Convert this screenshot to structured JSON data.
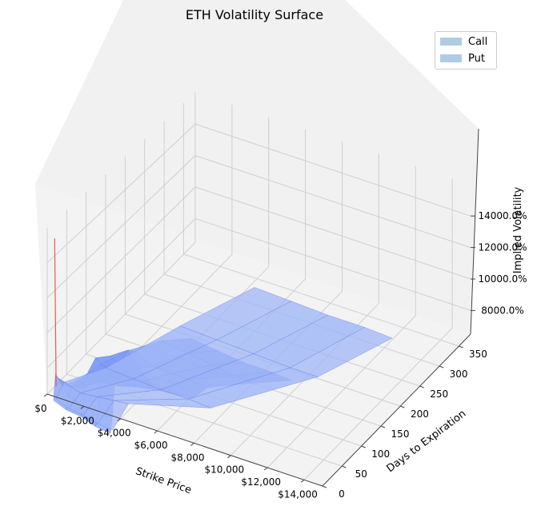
{
  "chart_data": {
    "type": "surface",
    "title": "ETH Volatility Surface",
    "xlabel": "Strike Price",
    "ylabel": "Days to Expiration",
    "zlabel": "Implied Volatility",
    "x_ticks": [
      "$0",
      "$2,000",
      "$4,000",
      "$6,000",
      "$8,000",
      "$10,000",
      "$12,000",
      "$14,000"
    ],
    "y_ticks": [
      "0",
      "50",
      "100",
      "150",
      "200",
      "250",
      "300",
      "350"
    ],
    "z_ticks": [
      "8000.0%",
      "10000.0%",
      "12000.0%",
      "14000.0%"
    ],
    "xlim": [
      0,
      15000
    ],
    "ylim": [
      0,
      380
    ],
    "zlim": [
      6500,
      16000
    ],
    "legend": {
      "position": "top-right"
    },
    "series": [
      {
        "name": "Call",
        "color": "#8fb7d9",
        "surface_color": "#7f9cf5",
        "strips": [
          [
            [
              300,
              2,
              6200
            ],
            [
              1000,
              2,
              5900
            ],
            [
              1800,
              2,
              5800
            ],
            [
              2600,
              2,
              5500
            ],
            [
              3400,
              2,
              5400
            ]
          ],
          [
            [
              300,
              7,
              7600
            ],
            [
              1000,
              7,
              6600
            ],
            [
              1800,
              7,
              6300
            ],
            [
              2600,
              7,
              6100
            ],
            [
              3400,
              7,
              6200
            ]
          ],
          [
            [
              300,
              14,
              7200
            ],
            [
              1000,
              14,
              7000
            ],
            [
              1800,
              14,
              7800
            ],
            [
              2600,
              14,
              8200
            ],
            [
              3400,
              14,
              8400
            ]
          ],
          [
            [
              300,
              30,
              6400
            ],
            [
              1200,
              30,
              6600
            ],
            [
              2000,
              30,
              8600
            ],
            [
              2800,
              30,
              9000
            ],
            [
              3800,
              30,
              9700
            ]
          ],
          [
            [
              600,
              60,
              6300
            ],
            [
              1600,
              60,
              6400
            ],
            [
              2600,
              60,
              6500
            ],
            [
              3600,
              60,
              6800
            ],
            [
              4600,
              60,
              7000
            ]
          ],
          [
            [
              1000,
              90,
              6500
            ],
            [
              2200,
              90,
              6400
            ],
            [
              3400,
              90,
              6400
            ],
            [
              4600,
              90,
              6300
            ],
            [
              6000,
              90,
              6300
            ]
          ],
          [
            [
              2000,
              120,
              7000
            ],
            [
              3200,
              120,
              6500
            ],
            [
              4200,
              120,
              6400
            ],
            [
              5200,
              120,
              6400
            ],
            [
              6200,
              120,
              6300
            ]
          ],
          [
            [
              3000,
              150,
              7200
            ],
            [
              4400,
              150,
              7000
            ],
            [
              5800,
              150,
              6800
            ],
            [
              7000,
              150,
              6600
            ],
            [
              8000,
              150,
              6500
            ]
          ],
          [
            [
              4000,
              180,
              7000
            ],
            [
              5500,
              180,
              6800
            ],
            [
              7000,
              180,
              6600
            ],
            [
              8400,
              180,
              6600
            ],
            [
              9500,
              180,
              6500
            ]
          ]
        ]
      },
      {
        "name": "Put",
        "color": "#8fb7d9",
        "surface_color": "#9db5f7",
        "strips": [
          [
            [
              400,
              3,
              6300
            ],
            [
              1100,
              3,
              6000
            ],
            [
              1900,
              3,
              5900
            ],
            [
              2700,
              3,
              5700
            ],
            [
              3500,
              3,
              5600
            ]
          ],
          [
            [
              500,
              20,
              6900
            ],
            [
              1400,
              20,
              6600
            ],
            [
              2300,
              20,
              6700
            ],
            [
              3200,
              20,
              6800
            ],
            [
              4000,
              20,
              6900
            ]
          ],
          [
            [
              1500,
              80,
              6700
            ],
            [
              3000,
              80,
              6600
            ],
            [
              4500,
              80,
              6500
            ],
            [
              6000,
              80,
              6500
            ],
            [
              7200,
              80,
              6400
            ]
          ],
          [
            [
              3000,
              200,
              6900
            ],
            [
              5000,
              200,
              6800
            ],
            [
              7000,
              200,
              6700
            ],
            [
              9000,
              200,
              6600
            ],
            [
              10500,
              200,
              6600
            ]
          ],
          [
            [
              4500,
              320,
              6900
            ],
            [
              6500,
              320,
              6800
            ],
            [
              8500,
              320,
              6700
            ],
            [
              10500,
              320,
              6700
            ],
            [
              12000,
              320,
              6600
            ]
          ]
        ],
        "spike": [
          [
            300,
            5,
            15400
          ],
          [
            400,
            4,
            7000
          ]
        ]
      }
    ]
  }
}
